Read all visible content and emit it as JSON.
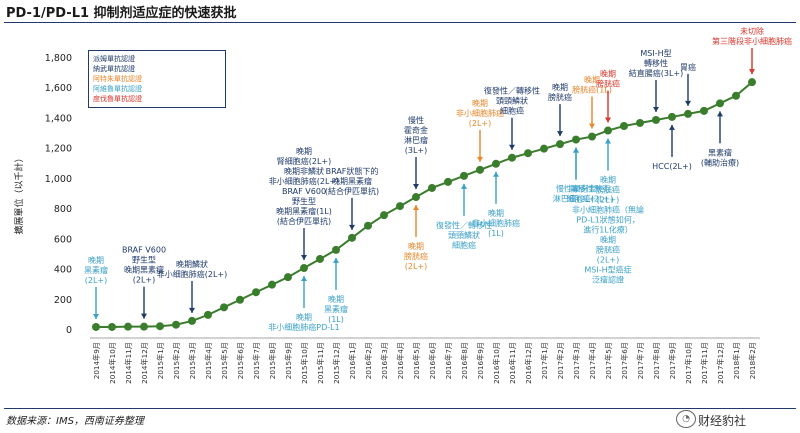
{
  "title": "PD-1/PD-L1 抑制剂适应症的快速获批",
  "source": "数据来源：IMS，西南证券整理",
  "watermark": "财经豹社",
  "legend": [
    {
      "label": "派姆單抗認證",
      "color": "#1f3a6b"
    },
    {
      "label": "納武單抗認證",
      "color": "#1f3a6b"
    },
    {
      "label": "阿特朱單抗認證",
      "color": "#e8862a"
    },
    {
      "label": "阿維魯單抗認證",
      "color": "#3aa0c8"
    },
    {
      "label": "度伐魯單抗認證",
      "color": "#d9342b"
    }
  ],
  "chart_data": {
    "type": "line",
    "ylabel": "擴展單位（以千計）",
    "ylim": [
      0,
      1800
    ],
    "yticks": [
      0,
      200,
      400,
      600,
      800,
      1000,
      1200,
      1400,
      1600,
      1800
    ],
    "ytick_labels": [
      "0",
      "200",
      "400",
      "600",
      "800",
      "1,000",
      "1,200",
      "1,400",
      "1,600",
      "1,800"
    ],
    "categories": [
      "2014年9月",
      "2014年10月",
      "2014年11月",
      "2014年12月",
      "2015年1月",
      "2015年2月",
      "2015年3月",
      "2015年4月",
      "2015年5月",
      "2015年6月",
      "2015年7月",
      "2015年8月",
      "2015年9月",
      "2015年10月",
      "2015年11月",
      "2015年12月",
      "2016年1月",
      "2016年2月",
      "2016年3月",
      "2016年4月",
      "2016年5月",
      "2016年6月",
      "2016年7月",
      "2016年8月",
      "2016年9月",
      "2016年10月",
      "2016年11月",
      "2016年12月",
      "2017年1月",
      "2017年2月",
      "2017年3月",
      "2017年4月",
      "2017年5月",
      "2017年6月",
      "2017年7月",
      "2017年8月",
      "2017年9月",
      "2017年10月",
      "2017年11月",
      "2017年12月",
      "2018年1月",
      "2018年2月"
    ],
    "series": [
      {
        "values": [
          20,
          20,
          22,
          22,
          25,
          35,
          60,
          100,
          150,
          200,
          250,
          300,
          350,
          410,
          470,
          530,
          610,
          690,
          760,
          820,
          880,
          940,
          980,
          1020,
          1060,
          1100,
          1140,
          1170,
          1200,
          1230,
          1260,
          1280,
          1320,
          1350,
          1370,
          1390,
          1410,
          1430,
          1450,
          1500,
          1550,
          1640
        ]
      }
    ],
    "marker": "circle",
    "line_color": "#3a7d2c",
    "annotations": [
      {
        "text": "晚期\n黑素瘤\n(2L+)",
        "at": "2014年9月",
        "color": "#3aa0c8",
        "side": "above"
      },
      {
        "text": "BRAF V600\n野生型\n晚期黑素瘤\n(2L+)",
        "at": "2014年12月",
        "color": "#1f3a6b",
        "side": "above"
      },
      {
        "text": "晚期鱗狀\n非小细胞肺癌(2L+)",
        "at": "2015年3月",
        "color": "#1f3a6b",
        "side": "above"
      },
      {
        "text": "晚期\n非小细胞肺癌PD-L1",
        "at": "2015年10月",
        "color": "#3aa0c8",
        "side": "below"
      },
      {
        "text": "晚期\n黑素瘤\n(1L)",
        "at": "2015年12月",
        "color": "#3aa0c8",
        "side": "below"
      },
      {
        "text": "晚期\n腎細胞癌(2L+)\n晚期非鱗狀\n非小細胞肺癌(2L+)\nBRAF V600\n野生型\n晚期黑素瘤(1L)\n(結合伊匹單抗)",
        "at": "2015年10月",
        "color": "#1f3a6b",
        "side": "above"
      },
      {
        "text": "BRAF狀態下的\n晚期黑素瘤\n(結合伊匹單抗)",
        "at": "2016年1月",
        "color": "#1f3a6b",
        "side": "above"
      },
      {
        "text": "晚期\n膀胱癌\n(2L+)",
        "at": "2016年5月",
        "color": "#e8862a",
        "side": "below"
      },
      {
        "text": "復發性／轉移性\n頭頸鱗狀\n細胞癌",
        "at": "2016年8月",
        "color": "#3aa0c8",
        "side": "below"
      },
      {
        "text": "晚期\n非小細胞肺癌\n(1L)",
        "at": "2016年10月",
        "color": "#3aa0c8",
        "side": "below"
      },
      {
        "text": "慢性\n霍奇金\n淋巴瘤\n(3L+)",
        "at": "2016年5月",
        "color": "#1f3a6b",
        "side": "above"
      },
      {
        "text": "晚期\n非小細胞肺癌\n(2L+)",
        "at": "2016年9月",
        "color": "#e8862a",
        "side": "above"
      },
      {
        "text": "復發性／轉移性\n頭頸鱗狀\n細胞癌",
        "at": "2016年11月",
        "color": "#1f3a6b",
        "side": "above"
      },
      {
        "text": "慢性霍奇金\n淋巴瘤(2L+)",
        "at": "2017年3月",
        "color": "#3aa0c8",
        "side": "below"
      },
      {
        "text": "轉移性默克\n細胞癌(2L+)",
        "at": "2017年3月",
        "color": "#3aa0c8",
        "side": "below"
      },
      {
        "text": "晚期\n膀胱癌",
        "at": "2017年2月",
        "color": "#1f3a6b",
        "side": "above"
      },
      {
        "text": "晚期\n膀胱癌(1L)",
        "at": "2017年4月",
        "color": "#e8862a",
        "side": "above"
      },
      {
        "text": "晚期\n膀胱癌",
        "at": "2017年5月",
        "color": "#d9342b",
        "side": "above"
      },
      {
        "text": "晚期\n膀胱癌\n(2L+)\n非小細胞肺癌（無論\nPD-L1狀態如何，\n進行1L化療）\n晚期\n膀胱癌\n(2L+)\nMSI-H型癌症\n泛瘤認證",
        "at": "2017年5月",
        "color": "#3aa0c8",
        "side": "below"
      },
      {
        "text": "MSI-H型\n轉移性\n結直腸癌(3L+)",
        "at": "2017年8月",
        "color": "#1f3a6b",
        "side": "above"
      },
      {
        "text": "HCC(2L+)",
        "at": "2017年9月",
        "color": "#1f3a6b",
        "side": "below"
      },
      {
        "text": "胃癌",
        "at": "2017年10月",
        "color": "#1f3a6b",
        "side": "above"
      },
      {
        "text": "黑素瘤\n(輔助治療)",
        "at": "2017年12月",
        "color": "#1f3a6b",
        "side": "below"
      },
      {
        "text": "未切除\n第三階段非小細胞肺癌",
        "at": "2018年2月",
        "color": "#d9342b",
        "side": "above"
      }
    ]
  }
}
